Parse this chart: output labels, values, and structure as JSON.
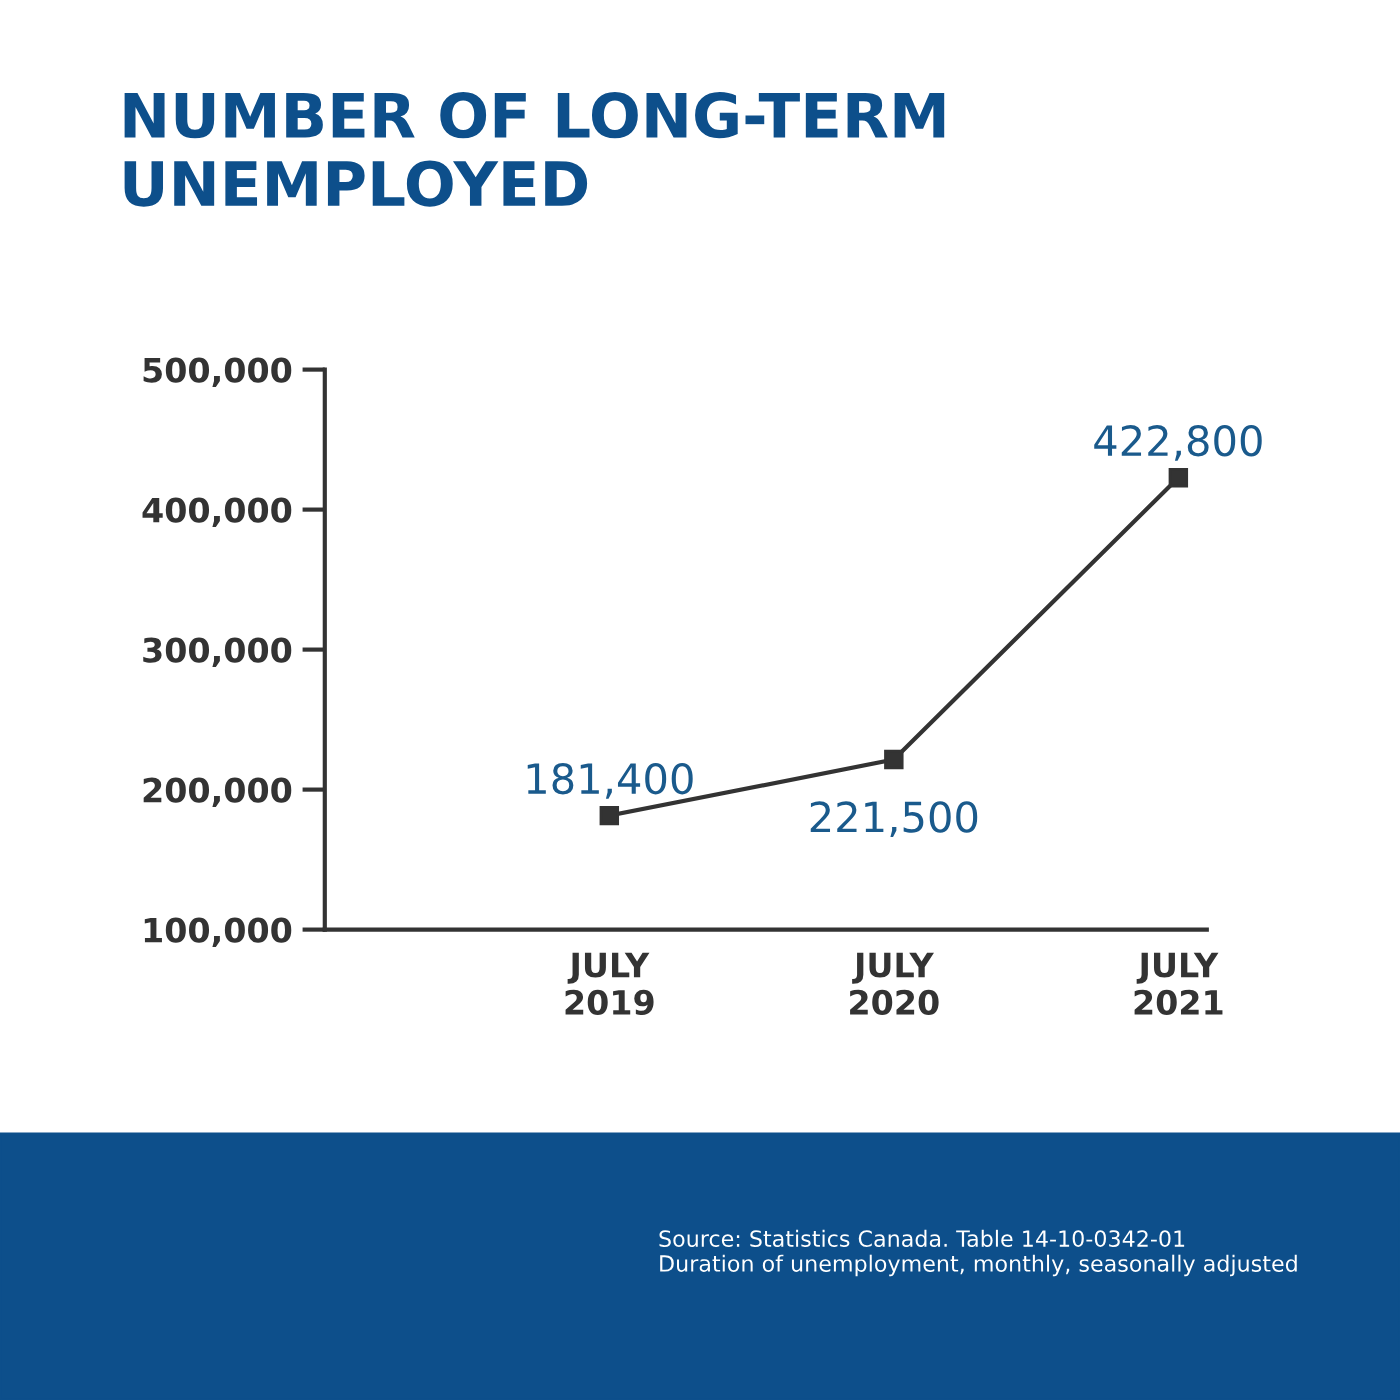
{
  "chart_data": {
    "type": "line",
    "title": "NUMBER OF LONG-TERM\nUNEMPLOYED",
    "categories": [
      "JULY\n2019",
      "JULY\n2020",
      "JULY\n2021"
    ],
    "series": [
      {
        "color": "#333333",
        "values": [
          181400,
          221500,
          422800
        ],
        "value_labels": [
          "181,400",
          "221,500",
          "422,800"
        ]
      }
    ],
    "ylim": [
      100000,
      500000
    ],
    "yticks": [
      {
        "value": 100000,
        "label": "100,000"
      },
      {
        "value": 200000,
        "label": "200,000"
      },
      {
        "value": 300000,
        "label": "300,000"
      },
      {
        "value": 400000,
        "label": "400,000"
      },
      {
        "value": 500000,
        "label": "500,000"
      }
    ],
    "marker": "square",
    "grid": false,
    "legend": false,
    "annotations": [
      "Source: Statistics Canada. Table 14-10-0342-01\nDuration of unemployment, monthly, seasonally adjusted"
    ]
  }
}
